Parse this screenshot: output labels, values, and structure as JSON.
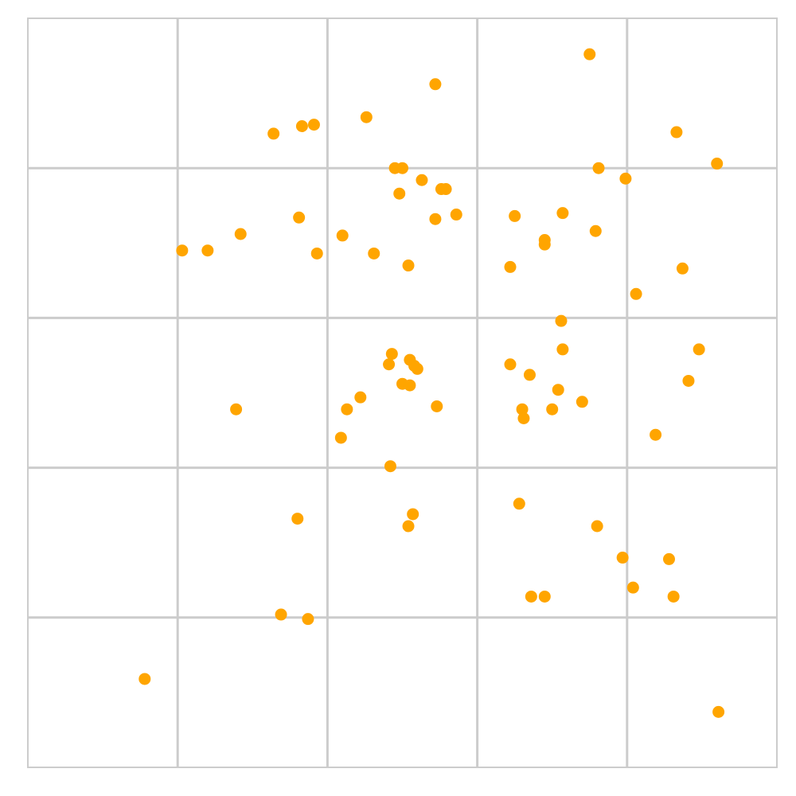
{
  "colors": {
    "point": "#ffa500",
    "grid": "#cccccc",
    "frame": "#cccccc",
    "background": "#ffffff"
  },
  "chart_data": {
    "type": "scatter",
    "title": "",
    "xlabel": "",
    "ylabel": "",
    "xlim": [
      0,
      5
    ],
    "ylim": [
      0,
      5
    ],
    "grid": true,
    "x_gridlines": [
      1,
      2,
      3,
      4
    ],
    "y_gridlines": [
      1,
      2,
      3,
      4
    ],
    "tick_labels_shown": false,
    "legend": "none",
    "series": [
      {
        "points": [
          [
            3.75,
            4.76
          ],
          [
            2.72,
            4.56
          ],
          [
            2.26,
            4.34
          ],
          [
            1.91,
            4.29
          ],
          [
            1.83,
            4.28
          ],
          [
            1.64,
            4.23
          ],
          [
            4.33,
            4.24
          ],
          [
            4.6,
            4.03
          ],
          [
            3.81,
            4.0
          ],
          [
            3.99,
            3.93
          ],
          [
            2.5,
            4.0
          ],
          [
            2.45,
            4.0
          ],
          [
            2.63,
            3.92
          ],
          [
            2.79,
            3.86
          ],
          [
            2.76,
            3.86
          ],
          [
            2.48,
            3.83
          ],
          [
            2.86,
            3.69
          ],
          [
            2.72,
            3.66
          ],
          [
            3.25,
            3.68
          ],
          [
            3.57,
            3.7
          ],
          [
            3.79,
            3.58
          ],
          [
            1.81,
            3.67
          ],
          [
            2.1,
            3.55
          ],
          [
            1.42,
            3.56
          ],
          [
            1.03,
            3.45
          ],
          [
            1.2,
            3.45
          ],
          [
            1.93,
            3.43
          ],
          [
            2.31,
            3.43
          ],
          [
            2.54,
            3.35
          ],
          [
            3.45,
            3.52
          ],
          [
            3.45,
            3.49
          ],
          [
            3.22,
            3.34
          ],
          [
            4.37,
            3.33
          ],
          [
            4.06,
            3.16
          ],
          [
            3.56,
            2.98
          ],
          [
            3.57,
            2.79
          ],
          [
            4.48,
            2.79
          ],
          [
            2.43,
            2.76
          ],
          [
            2.55,
            2.72
          ],
          [
            2.41,
            2.69
          ],
          [
            2.58,
            2.68
          ],
          [
            2.6,
            2.66
          ],
          [
            2.5,
            2.56
          ],
          [
            2.55,
            2.55
          ],
          [
            3.22,
            2.69
          ],
          [
            3.35,
            2.62
          ],
          [
            3.54,
            2.52
          ],
          [
            3.7,
            2.44
          ],
          [
            4.41,
            2.58
          ],
          [
            2.22,
            2.47
          ],
          [
            2.13,
            2.39
          ],
          [
            1.39,
            2.39
          ],
          [
            2.73,
            2.41
          ],
          [
            3.3,
            2.39
          ],
          [
            3.31,
            2.33
          ],
          [
            3.5,
            2.39
          ],
          [
            2.09,
            2.2
          ],
          [
            4.19,
            2.22
          ],
          [
            2.42,
            2.01
          ],
          [
            3.28,
            1.76
          ],
          [
            2.57,
            1.69
          ],
          [
            2.54,
            1.61
          ],
          [
            1.8,
            1.66
          ],
          [
            3.8,
            1.61
          ],
          [
            3.97,
            1.4
          ],
          [
            4.28,
            1.39
          ],
          [
            4.04,
            1.2
          ],
          [
            3.36,
            1.14
          ],
          [
            3.45,
            1.14
          ],
          [
            4.31,
            1.14
          ],
          [
            1.69,
            1.02
          ],
          [
            1.87,
            0.99
          ],
          [
            0.78,
            0.59
          ],
          [
            4.61,
            0.37
          ]
        ]
      }
    ]
  }
}
